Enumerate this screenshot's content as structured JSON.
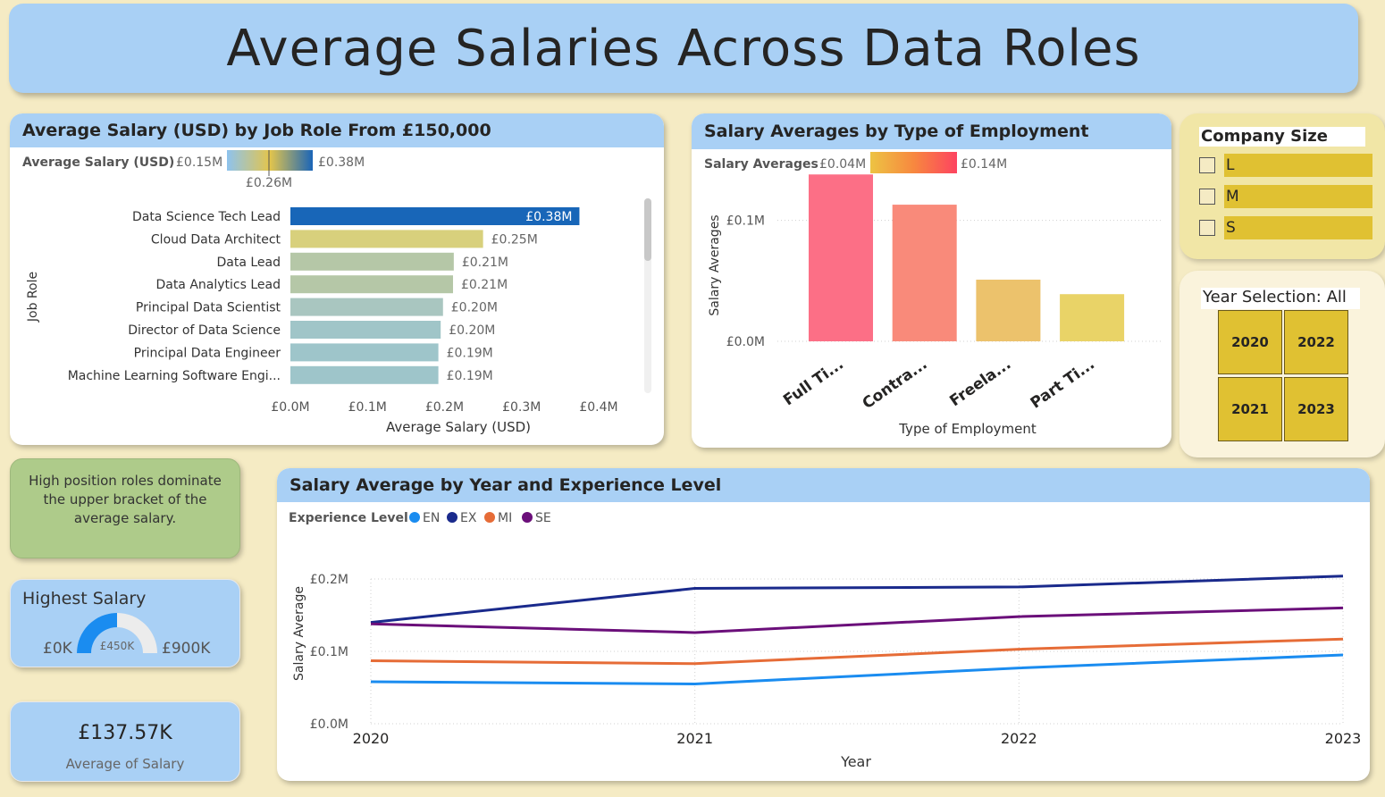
{
  "page_title": "Average Salaries Across Data Roles",
  "colors": {
    "page_bg": "#f5ebc4",
    "header_blue": "#a9d0f5",
    "slicer_yellow": "#e0c132",
    "note_green": "#aecb8a"
  },
  "job_role_chart": {
    "title": "Average Salary (USD) by Job Role From £150,000",
    "legend_title": "Average Salary (USD)",
    "legend_min": "£0.15M",
    "legend_max": "£0.38M",
    "legend_mid": "£0.26M"
  },
  "employment_chart": {
    "title": "Salary Averages by Type of Employment",
    "legend_title": "Salary Averages",
    "legend_min": "£0.04M",
    "legend_max": "£0.14M"
  },
  "experience_chart": {
    "title": "Salary Average by Year and Experience Level",
    "legend_title": "Experience Level"
  },
  "company_size": {
    "title": "Company Size",
    "options": [
      "L",
      "M",
      "S"
    ]
  },
  "year_selection": {
    "title": "Year Selection: All",
    "years": [
      "2020",
      "2022",
      "2021",
      "2023"
    ]
  },
  "note": {
    "text": "High position roles dominate the upper bracket of the average salary."
  },
  "gauge": {
    "title": "Highest Salary",
    "min_label": "£0K",
    "max_label": "£900K",
    "value_label": "£450K",
    "value": 450,
    "min": 0,
    "max": 900
  },
  "kpi": {
    "value": "£137.57K",
    "label": "Average of Salary"
  },
  "chart_data": [
    {
      "type": "bar",
      "orientation": "horizontal",
      "title": "Average Salary (USD) by Job Role From £150,000",
      "xlabel": "Average Salary (USD)",
      "ylabel": "Job Role",
      "categories": [
        "Data Science Tech Lead",
        "Cloud Data Architect",
        "Data Lead",
        "Data Analytics Lead",
        "Principal Data Scientist",
        "Director of Data Science",
        "Principal Data Engineer",
        "Machine Learning Software Engi..."
      ],
      "values": [
        0.375,
        0.25,
        0.212,
        0.211,
        0.198,
        0.195,
        0.192,
        0.192
      ],
      "data_labels": [
        "£0.38M",
        "£0.25M",
        "£0.21M",
        "£0.21M",
        "£0.20M",
        "£0.20M",
        "£0.19M",
        "£0.19M"
      ],
      "bar_colors": [
        "#1866b8",
        "#d8d07c",
        "#b5c7a7",
        "#b5c7a7",
        "#a9c6c0",
        "#a0c5c8",
        "#9ec5ca",
        "#9ec5ca"
      ],
      "xlim": [
        0,
        0.4
      ],
      "xticks": [
        0,
        0.1,
        0.2,
        0.3,
        0.4
      ],
      "xtick_labels": [
        "£0.0M",
        "£0.1M",
        "£0.2M",
        "£0.3M",
        "£0.4M"
      ]
    },
    {
      "type": "bar",
      "title": "Salary Averages by Type of Employment",
      "xlabel": "Type of Employment",
      "ylabel": "Salary Averages",
      "categories": [
        "Full Ti...",
        "Contra...",
        "Freela...",
        "Part Ti..."
      ],
      "values": [
        0.138,
        0.113,
        0.051,
        0.039
      ],
      "bar_colors": [
        "#fc6f86",
        "#f98a7a",
        "#ecc26c",
        "#e9d367"
      ],
      "ylim": [
        0,
        0.15
      ],
      "yticks": [
        0,
        0.1
      ],
      "ytick_labels": [
        "£0.0M",
        "£0.1M"
      ]
    },
    {
      "type": "line",
      "title": "Salary Average by Year and Experience Level",
      "xlabel": "Year",
      "ylabel": "Salary Average",
      "x": [
        "2020",
        "2021",
        "2022",
        "2023"
      ],
      "ylim": [
        0,
        0.2
      ],
      "yticks": [
        0,
        0.1,
        0.2
      ],
      "ytick_labels": [
        "£0.0M",
        "£0.1M",
        "£0.2M"
      ],
      "legend_position": "top-left",
      "series": [
        {
          "name": "EN",
          "color": "#1a8cf0",
          "values": [
            0.058,
            0.055,
            0.077,
            0.095
          ]
        },
        {
          "name": "EX",
          "color": "#1a2a8c",
          "values": [
            0.14,
            0.187,
            0.189,
            0.204
          ]
        },
        {
          "name": "MI",
          "color": "#e66c37",
          "values": [
            0.087,
            0.083,
            0.103,
            0.117
          ]
        },
        {
          "name": "SE",
          "color": "#6b0f7a",
          "values": [
            0.138,
            0.126,
            0.148,
            0.16
          ]
        }
      ]
    }
  ]
}
